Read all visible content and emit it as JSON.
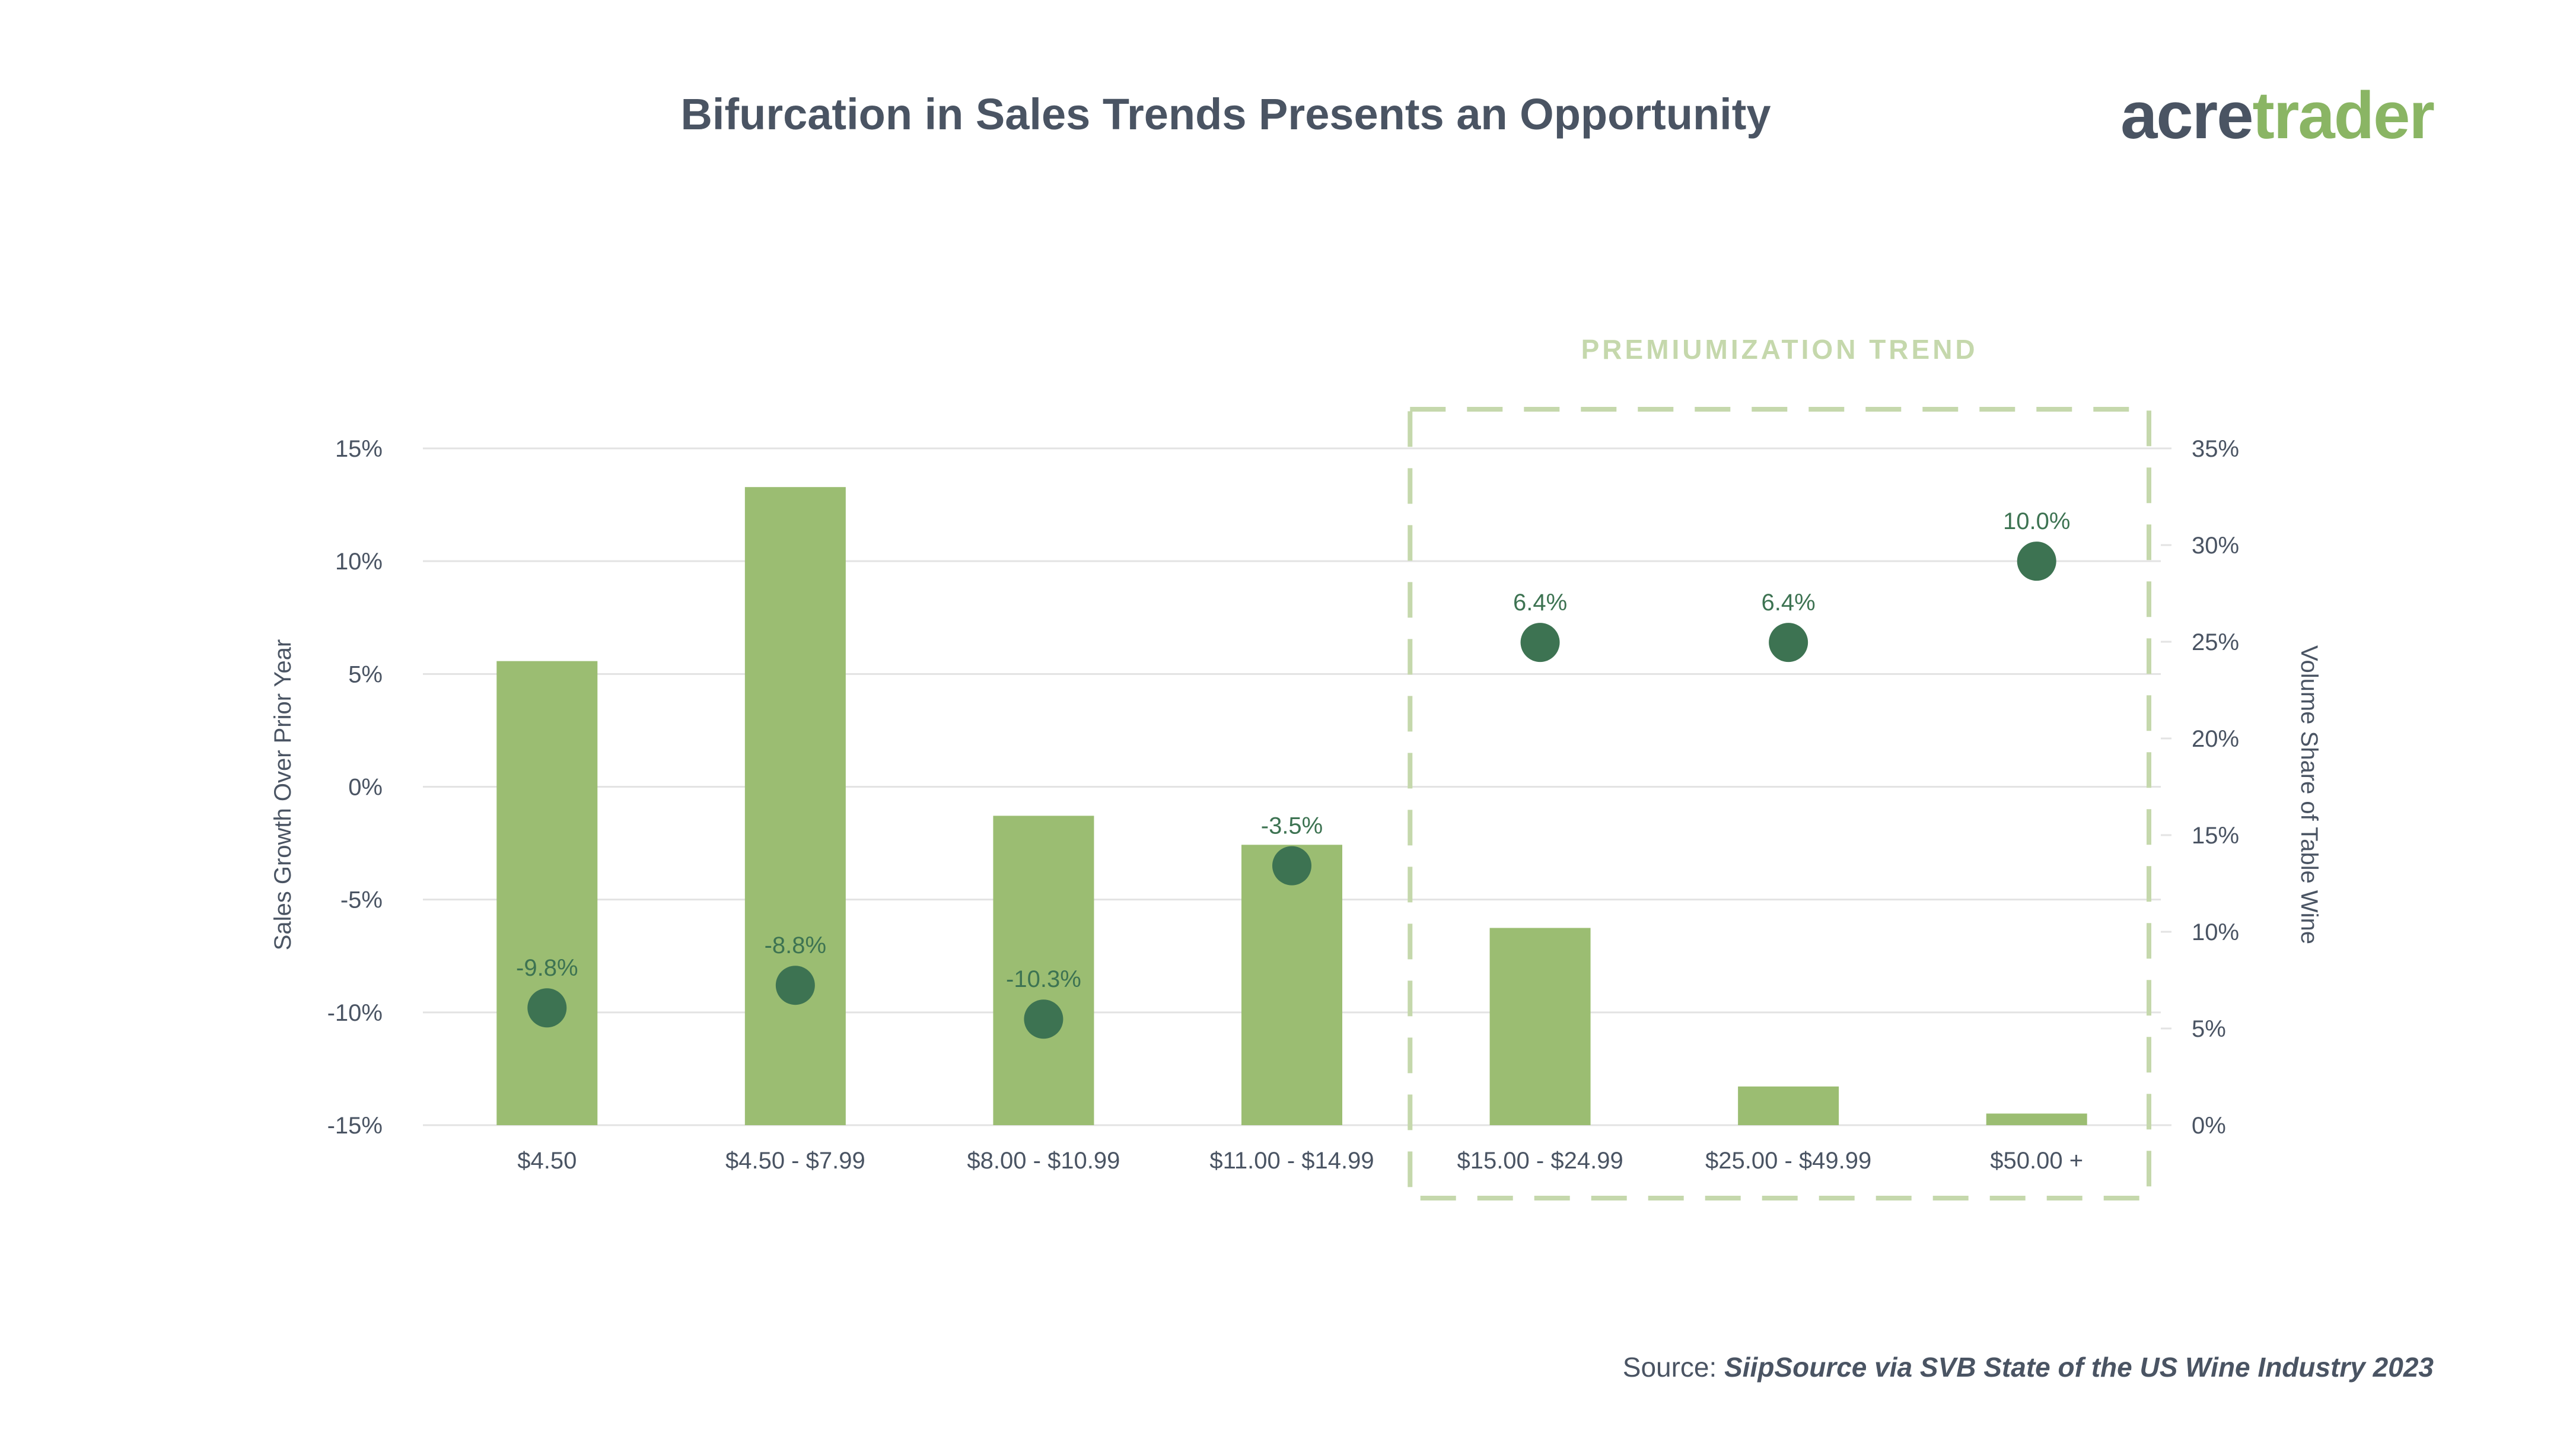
{
  "header": {
    "title": "Bifurcation in Sales Trends Presents an Opportunity",
    "logo_part1": "acre",
    "logo_part2": "trader"
  },
  "footer": {
    "source_label": "Source:",
    "source_text": "SiipSource via SVB State of the US Wine Industry 2023"
  },
  "colors": {
    "bar": "#9bbd72",
    "dot": "#3d7352",
    "highlight": "#c5d8ac",
    "text": "#4a5463",
    "grid": "#e3e3e3"
  },
  "chart_data": {
    "type": "bar",
    "categories": [
      "$4.50",
      "$4.50 - $7.99",
      "$8.00 - $10.99",
      "$11.00 - $14.99",
      "$15.00 - $24.99",
      "$25.00 - $49.99",
      "$50.00 +"
    ],
    "series": [
      {
        "type": "bar",
        "axis": "right",
        "values": [
          24.0,
          33.0,
          16.0,
          14.5,
          10.2,
          2.0,
          0.6
        ]
      },
      {
        "type": "scatter",
        "axis": "left",
        "values": [
          -9.8,
          -8.8,
          -10.3,
          -3.5,
          6.4,
          6.4,
          10.0
        ],
        "labels": [
          "-9.8%",
          "-8.8%",
          "-10.3%",
          "-3.5%",
          "6.4%",
          "6.4%",
          "10.0%"
        ]
      }
    ],
    "ylabel": "Sales Growth Over Prior Year",
    "y2label": "Volume Share of Table Wine",
    "ylim": [
      -15,
      15
    ],
    "y2lim": [
      0,
      35
    ],
    "yticks": [
      15,
      10,
      5,
      0,
      -5,
      -10,
      -15
    ],
    "ytick_labels": [
      "15%",
      "10%",
      "5%",
      "0%",
      "-5%",
      "-10%",
      "-15%"
    ],
    "y2ticks": [
      35,
      30,
      25,
      20,
      15,
      10,
      5,
      0
    ],
    "y2tick_labels": [
      "35%",
      "30%",
      "25%",
      "20%",
      "15%",
      "10%",
      "5%",
      "0%"
    ],
    "annotation": "PREMIUMIZATION TREND",
    "annotation_range": [
      "$15.00 - $24.99",
      "$50.00 +"
    ],
    "grid": true
  }
}
